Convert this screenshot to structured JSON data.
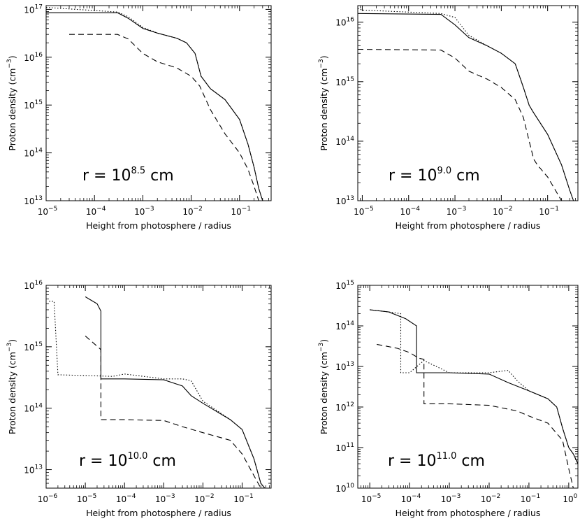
{
  "chart_data": [
    {
      "type": "line",
      "annotation": {
        "prefix": "r = 10",
        "exponent": "8.5",
        "suffix": " cm"
      },
      "xlabel": "Height from photosphere / radius",
      "ylabel": {
        "main": "Proton density (cm",
        "exponent": "−3",
        "close": ")"
      },
      "xscale": "log",
      "yscale": "log",
      "xlim": [
        1e-05,
        0.45
      ],
      "ylim": [
        10000000000000.0,
        1.2e+17
      ],
      "xticks": [
        -5,
        -4,
        -3,
        -2,
        -1
      ],
      "yticks": [
        13,
        14,
        15,
        16,
        17
      ],
      "series": [
        {
          "style": "solid",
          "x": [
            1e-05,
            0.0003,
            0.0005,
            0.001,
            0.002,
            0.005,
            0.008,
            0.012,
            0.016,
            0.025,
            0.05,
            0.1,
            0.15,
            0.2,
            0.25,
            0.3
          ],
          "y": [
            8.5e+16,
            8.5e+16,
            6.5e+16,
            4e+16,
            3.2e+16,
            2.5e+16,
            2e+16,
            1.2e+16,
            4000000000000000.0,
            2200000000000000.0,
            1300000000000000.0,
            500000000000000.0,
            150000000000000.0,
            50000000000000.0,
            18000000000000.0,
            10000000000000.0
          ]
        },
        {
          "style": "dotted",
          "x": [
            1e-05,
            0.0003,
            0.0005,
            0.001,
            0.002,
            0.005,
            0.008,
            0.012,
            0.016,
            0.025,
            0.05,
            0.1,
            0.15,
            0.2,
            0.25,
            0.3
          ],
          "y": [
            1.1e+17,
            8.8e+16,
            7e+16,
            4.2e+16,
            3.2e+16,
            2.5e+16,
            2e+16,
            1.2e+16,
            4000000000000000.0,
            2200000000000000.0,
            1300000000000000.0,
            500000000000000.0,
            150000000000000.0,
            50000000000000.0,
            18000000000000.0,
            10000000000000.0
          ]
        },
        {
          "style": "dashed",
          "x": [
            3e-05,
            0.0003,
            0.0005,
            0.001,
            0.002,
            0.005,
            0.01,
            0.015,
            0.025,
            0.05,
            0.1,
            0.15,
            0.2,
            0.25
          ],
          "y": [
            3e+16,
            3e+16,
            2.4e+16,
            1.2e+16,
            8000000000000000.0,
            6000000000000000.0,
            4000000000000000.0,
            2500000000000000.0,
            800000000000000.0,
            250000000000000.0,
            100000000000000.0,
            45000000000000.0,
            20000000000000.0,
            10000000000000.0
          ]
        }
      ]
    },
    {
      "type": "line",
      "annotation": {
        "prefix": "r = 10",
        "exponent": "9.0",
        "suffix": " cm"
      },
      "xlabel": "Height from photosphere / radius",
      "ylabel": {
        "main": "Proton density (cm",
        "exponent": "−3",
        "close": ")"
      },
      "xscale": "log",
      "yscale": "log",
      "xlim": [
        8e-06,
        0.45
      ],
      "ylim": [
        10000000000000.0,
        1.9e+16
      ],
      "xticks": [
        -5,
        -4,
        -3,
        -2,
        -1
      ],
      "yticks": [
        13,
        14,
        15,
        16
      ],
      "series": [
        {
          "style": "solid",
          "x": [
            8e-06,
            0.0005,
            0.001,
            0.002,
            0.005,
            0.01,
            0.02,
            0.03,
            0.04,
            0.05,
            0.1,
            0.2,
            0.3,
            0.4
          ],
          "y": [
            1.4e+16,
            1.35e+16,
            9000000000000000.0,
            5500000000000000.0,
            4000000000000000.0,
            3000000000000000.0,
            2000000000000000.0,
            800000000000000.0,
            400000000000000.0,
            300000000000000.0,
            130000000000000.0,
            40000000000000.0,
            15000000000000.0,
            8000000000000.0
          ]
        },
        {
          "style": "dotted",
          "x": [
            8e-06,
            1e-05,
            0.0005,
            0.001,
            0.002,
            0.005,
            0.01,
            0.02,
            0.03,
            0.04,
            0.05,
            0.1,
            0.2,
            0.3,
            0.4
          ],
          "y": [
            1.7e+16,
            1.6e+16,
            1.4e+16,
            1.2e+16,
            6000000000000000.0,
            4000000000000000.0,
            3000000000000000.0,
            2000000000000000.0,
            800000000000000.0,
            400000000000000.0,
            300000000000000.0,
            130000000000000.0,
            40000000000000.0,
            15000000000000.0,
            8000000000000.0
          ]
        },
        {
          "style": "dashed",
          "x": [
            8e-06,
            0.0005,
            0.001,
            0.002,
            0.005,
            0.01,
            0.02,
            0.03,
            0.04,
            0.05,
            0.06,
            0.1,
            0.2,
            0.3
          ],
          "y": [
            3500000000000000.0,
            3400000000000000.0,
            2500000000000000.0,
            1500000000000000.0,
            1100000000000000.0,
            800000000000000.0,
            500000000000000.0,
            250000000000000.0,
            100000000000000.0,
            50000000000000.0,
            40000000000000.0,
            25000000000000.0,
            10000000000000.0,
            7000000000000.0
          ]
        }
      ]
    },
    {
      "type": "line",
      "annotation": {
        "prefix": "r = 10",
        "exponent": "10.0",
        "suffix": " cm"
      },
      "xlabel": "Height from photosphere / radius",
      "ylabel": {
        "main": "Proton density (cm",
        "exponent": "−3",
        "close": ")"
      },
      "xscale": "log",
      "yscale": "log",
      "xlim": [
        1e-06,
        0.55
      ],
      "ylim": [
        5000000000000.0,
        1e+16
      ],
      "xticks": [
        -6,
        -5,
        -4,
        -3,
        -2,
        -1
      ],
      "yticks": [
        13,
        14,
        15,
        16
      ],
      "series": [
        {
          "style": "solid",
          "x": [
            1e-05,
            2e-05,
            2.5e-05,
            2.5e-05,
            0.0001,
            0.001,
            0.003,
            0.005,
            0.01,
            0.05,
            0.1,
            0.2,
            0.3,
            0.5
          ],
          "y": [
            6500000000000000.0,
            5000000000000000.0,
            3800000000000000.0,
            300000000000000.0,
            300000000000000.0,
            290000000000000.0,
            230000000000000.0,
            160000000000000.0,
            120000000000000.0,
            65000000000000.0,
            45000000000000.0,
            15000000000000.0,
            6000000000000.0,
            4000000000000.0
          ]
        },
        {
          "style": "dotted",
          "x": [
            1.2e-06,
            1.6e-06,
            2e-06,
            1e-05,
            5e-05,
            0.0001,
            0.001,
            0.003,
            0.005,
            0.01,
            0.05,
            0.1,
            0.2,
            0.3,
            0.5
          ],
          "y": [
            5500000000000000.0,
            5500000000000000.0,
            350000000000000.0,
            340000000000000.0,
            330000000000000.0,
            360000000000000.0,
            300000000000000.0,
            300000000000000.0,
            280000000000000.0,
            130000000000000.0,
            65000000000000.0,
            45000000000000.0,
            15000000000000.0,
            6000000000000.0,
            4000000000000.0
          ]
        },
        {
          "style": "dashed",
          "x": [
            1e-05,
            2.5e-05,
            2.5e-05,
            0.0001,
            0.001,
            0.003,
            0.01,
            0.05,
            0.1,
            0.2,
            0.3,
            0.5
          ],
          "y": [
            1500000000000000.0,
            900000000000000.0,
            65000000000000.0,
            65000000000000.0,
            63000000000000.0,
            50000000000000.0,
            40000000000000.0,
            30000000000000.0,
            18000000000000.0,
            8000000000000.0,
            5000000000000.0,
            3000000000000.0
          ]
        }
      ]
    },
    {
      "type": "line",
      "annotation": {
        "prefix": "r = 10",
        "exponent": "11.0",
        "suffix": " cm"
      },
      "xlabel": "Height from photosphere / radius",
      "ylabel": {
        "main": "Proton density (cm",
        "exponent": "−3",
        "close": ")"
      },
      "xscale": "log",
      "yscale": "log",
      "xlim": [
        5e-06,
        1.7
      ],
      "ylim": [
        10000000000.0,
        1000000000000000.0
      ],
      "xticks": [
        -5,
        -4,
        -3,
        -2,
        -1,
        0
      ],
      "yticks": [
        10,
        11,
        12,
        13,
        14,
        15
      ],
      "series": [
        {
          "style": "solid",
          "x": [
            1e-05,
            3e-05,
            8e-05,
            0.00015,
            0.00015,
            0.001,
            0.01,
            0.03,
            0.1,
            0.3,
            0.5,
            0.7,
            1,
            1.3,
            1.7
          ],
          "y": [
            250000000000000.0,
            220000000000000.0,
            150000000000000.0,
            100000000000000.0,
            7000000000000.0,
            7000000000000.0,
            6500000000000.0,
            4000000000000.0,
            2500000000000.0,
            1600000000000.0,
            1000000000000.0,
            300000000000.0,
            100000000000.0,
            70000000000.0,
            40000000000.0
          ]
        },
        {
          "style": "dotted",
          "x": [
            1e-05,
            3e-05,
            6e-05,
            6e-05,
            0.0001,
            0.00023,
            0.001,
            0.01,
            0.03,
            0.05,
            0.1,
            0.3,
            0.5,
            0.7,
            1,
            1.3,
            1.7
          ],
          "y": [
            250000000000000.0,
            220000000000000.0,
            200000000000000.0,
            7000000000000.0,
            7000000000000.0,
            14000000000000.0,
            7000000000000.0,
            7000000000000.0,
            8000000000000.0,
            4500000000000.0,
            2500000000000.0,
            1600000000000.0,
            1000000000000.0,
            300000000000.0,
            100000000000.0,
            70000000000.0,
            40000000000.0
          ]
        },
        {
          "style": "dashed",
          "x": [
            1.5e-05,
            5e-05,
            0.0001,
            0.00017,
            0.00023,
            0.00023,
            0.001,
            0.01,
            0.05,
            0.1,
            0.3,
            0.7,
            1,
            1.3
          ],
          "y": [
            35000000000000.0,
            28000000000000.0,
            22000000000000.0,
            16000000000000.0,
            15000000000000.0,
            1200000000000.0,
            1200000000000.0,
            1100000000000.0,
            800000000000.0,
            600000000000.0,
            400000000000.0,
            150000000000.0,
            30000000000.0,
            10000000000.0
          ]
        }
      ]
    }
  ]
}
